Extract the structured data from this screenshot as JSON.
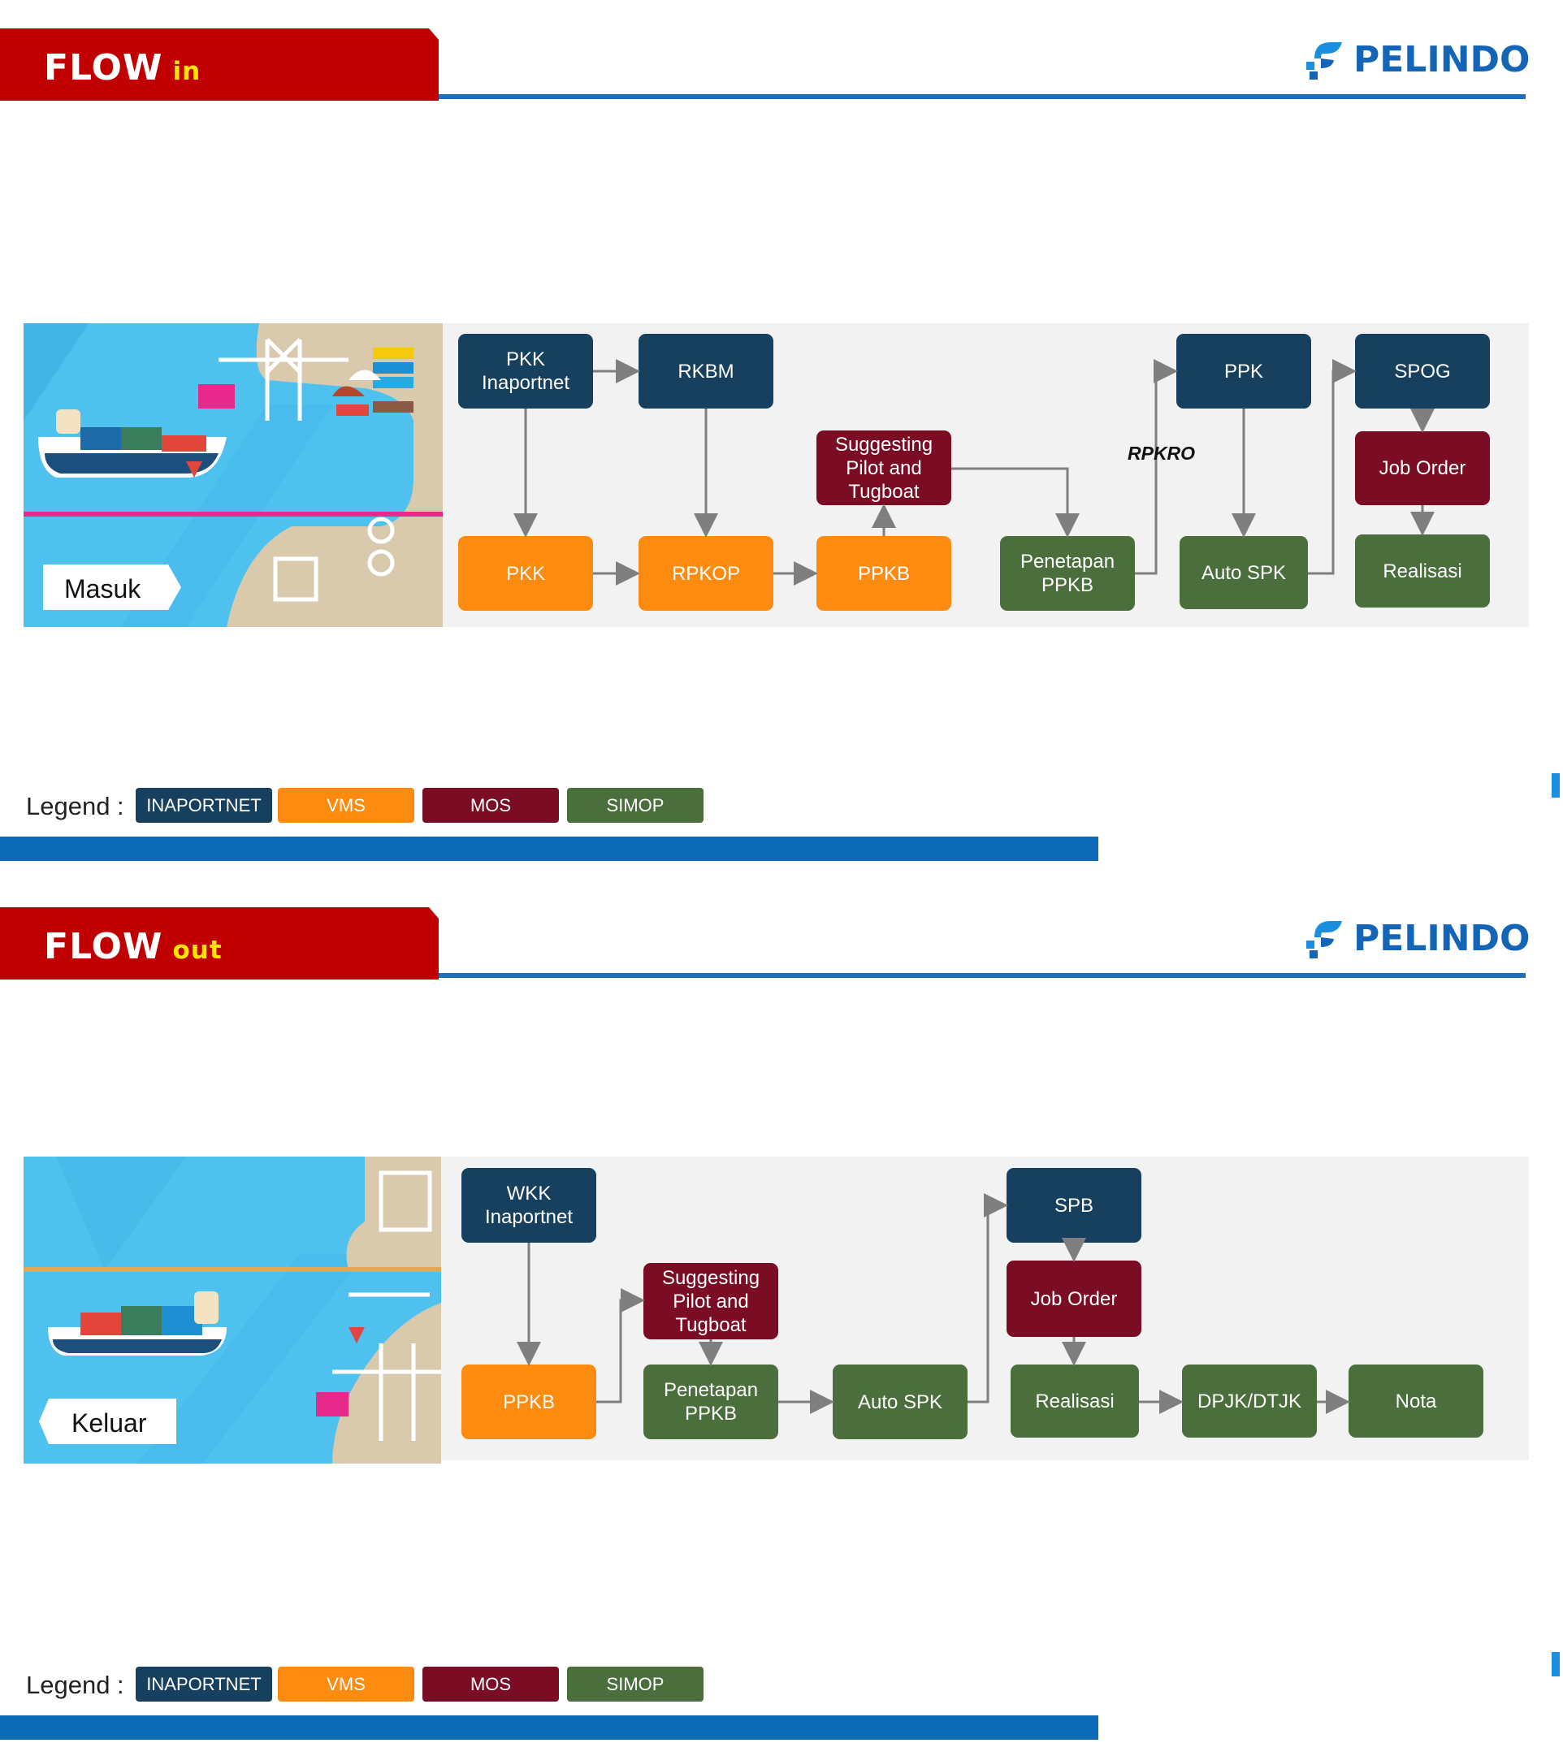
{
  "brand": {
    "logo_text": "PELINDO"
  },
  "flow_in": {
    "title": "FLOW",
    "title_suffix": "in",
    "illustration_label": "Masuk",
    "nodes": {
      "pkk_inaportnet": "PKK\nInaportnet",
      "rkbm": "RKBM",
      "suggesting": "Suggesting\nPilot and\nTugboat",
      "ppk": "PPK",
      "spog": "SPOG",
      "job_order": "Job Order",
      "pkk": "PKK",
      "rpkop": "RPKOP",
      "ppkb": "PPKB",
      "penetapan": "Penetapan\nPPKB",
      "auto_spk": "Auto SPK",
      "realisasi": "Realisasi"
    },
    "edge_label": "RPKRO"
  },
  "flow_out": {
    "title": "FLOW",
    "title_suffix": "out",
    "illustration_label": "Keluar",
    "nodes": {
      "wkk_inaportnet": "WKK\nInaportnet",
      "suggesting": "Suggesting\nPilot and\nTugboat",
      "spb": "SPB",
      "job_order": "Job Order",
      "ppkb": "PPKB",
      "penetapan": "Penetapan\nPPKB",
      "auto_spk": "Auto SPK",
      "realisasi": "Realisasi",
      "dpjk": "DPJK/DTJK",
      "nota": "Nota"
    }
  },
  "legend": {
    "label": "Legend :",
    "items": [
      {
        "label": "INAPORTNET",
        "color": "#17405f"
      },
      {
        "label": "VMS",
        "color": "#fd8b10"
      },
      {
        "label": "MOS",
        "color": "#7a0c24"
      },
      {
        "label": "SIMOP",
        "color": "#4b6f3c"
      }
    ]
  },
  "colors": {
    "title_red": "#c00000",
    "title_suffix_yellow": "#ffe600",
    "header_blue": "#1f6fb8",
    "bottom_bar_blue": "#0d6ab6",
    "panel_gray": "#f2f2f2",
    "arrow_gray": "#7f7f7f"
  }
}
